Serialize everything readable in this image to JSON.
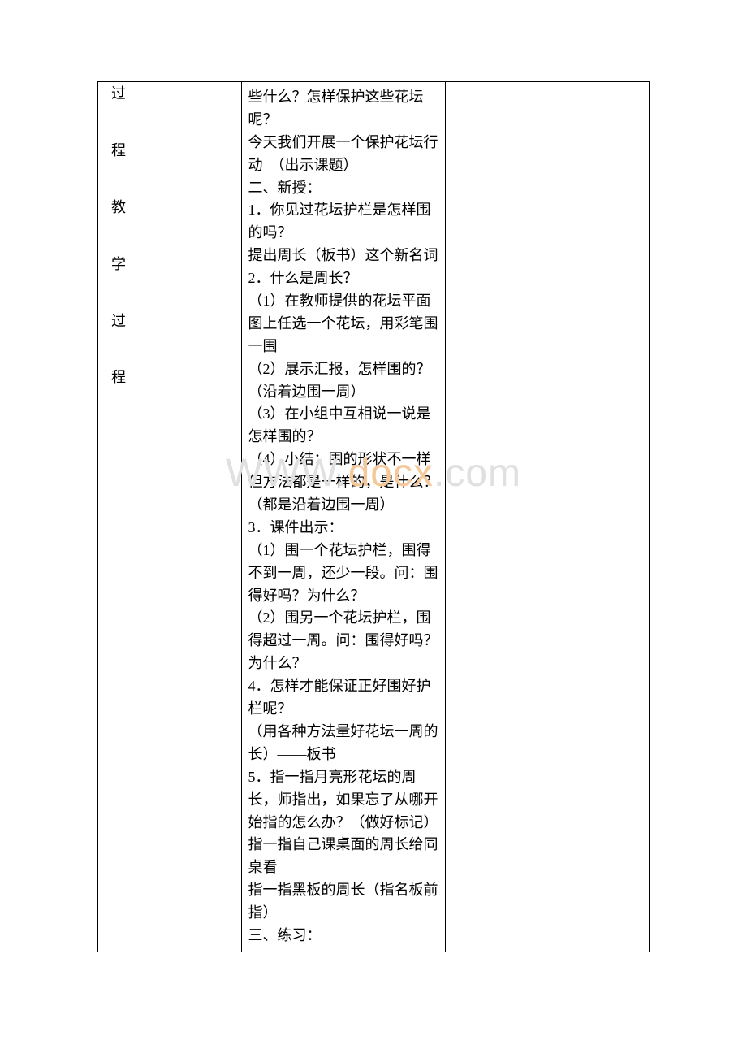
{
  "table": {
    "leftColumn": {
      "chars": [
        "过",
        "程",
        "教",
        "学",
        "过",
        "程"
      ]
    },
    "middleColumn": {
      "lines": [
        "些什么？怎样保护这些花坛呢？",
        "今天我们开展一个保护花坛行动　（出示课题）",
        "二、新授：",
        "1．你见过花坛护栏是怎样围的吗？",
        "提出周长（板书）这个新名词",
        "2．什么是周长？",
        "（1）在教师提供的花坛平面图上任选一个花坛，用彩笔围一围",
        "（2）展示汇报，怎样围的？（沿着边围一周）",
        "（3）在小组中互相说一说是怎样围的？",
        "（4）小结：围的形状不一样但方法都是一样的，是什么？（都是沿着边围一周）",
        "3．课件出示：",
        "（1）围一个花坛护栏，围得不到一周，还少一段。问：围得好吗？为什么？",
        "（2）围另一个花坛护栏，围得超过一周。问：围得好吗？为什么？",
        "4．怎样才能保证正好围好护栏呢？",
        "（用各种方法量好花坛一周的长）——板书",
        "5．指一指月亮形花坛的周长，师指出，如果忘了从哪开始指的怎么办？（做好标记）",
        "指一指自己课桌面的周长给同桌看",
        "指一指黑板的周长（指名板前指）",
        "三、练习："
      ]
    }
  },
  "watermark": {
    "grayPrefix": "WW",
    "mixedPart": "W.",
    "orangePart": "docx",
    "graySuffix": ".com"
  },
  "styling": {
    "pageWidth": 920,
    "pageHeight": 1302,
    "backgroundColor": "#ffffff",
    "borderColor": "#000000",
    "textColor": "#000000",
    "fontSize": 18,
    "lineHeight": 1.55,
    "watermarkGrayColor": "#e0e0e0",
    "watermarkOrangeColor": "#f5c89a",
    "watermarkFontSize": 48
  }
}
